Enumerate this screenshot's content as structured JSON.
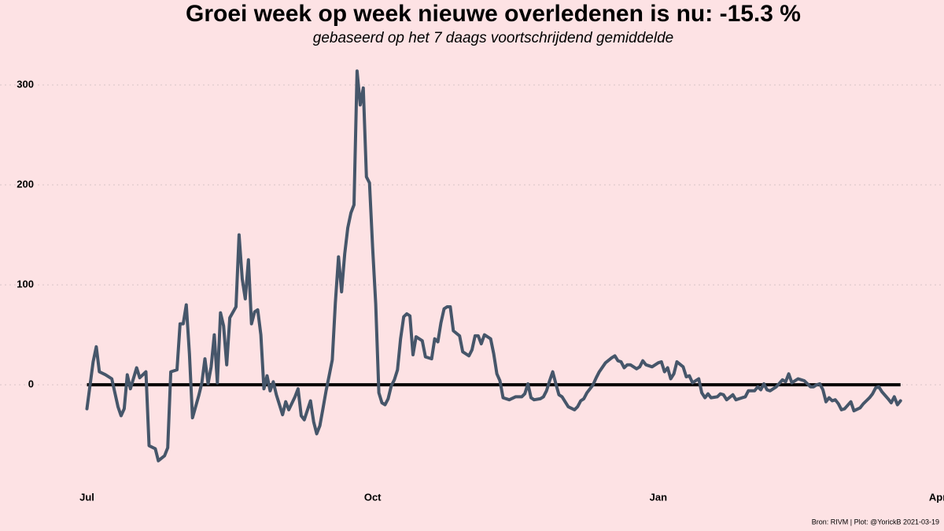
{
  "chart_data": {
    "type": "line",
    "title": "Groei week op week nieuwe overledenen is nu:  -15.3 %",
    "subtitle": "gebaseerd op het 7 daags voortschrijdend gemiddelde",
    "caption": "Bron: RIVM | Plot: @YorickB  2021-03-19",
    "xlim": [
      -28,
      276
    ],
    "xticks": [
      {
        "value": 0,
        "label": "Jul"
      },
      {
        "value": 92,
        "label": "Oct"
      },
      {
        "value": 184,
        "label": "Jan"
      },
      {
        "value": 274,
        "label": "Apr"
      }
    ],
    "ylim": [
      -103,
      322
    ],
    "yticks": [
      0,
      100,
      200,
      300
    ],
    "grid": true,
    "reference_line": 0,
    "series": [
      {
        "color": "#46566a",
        "x": [
          0,
          2,
          3,
          4,
          6,
          8,
          10,
          11,
          12,
          13,
          14,
          16,
          17,
          19,
          20,
          22,
          23,
          25,
          26,
          27,
          29,
          30,
          31,
          32,
          33,
          34,
          36,
          37,
          38,
          39,
          40,
          41,
          42,
          43,
          44,
          45,
          46,
          48,
          49,
          50,
          51,
          52,
          53,
          54,
          55,
          56,
          57,
          58,
          59,
          60,
          61,
          63,
          64,
          65,
          67,
          68,
          69,
          70,
          72,
          73,
          74,
          75,
          76,
          77,
          78,
          79,
          80,
          81,
          82,
          83,
          84,
          85,
          86,
          87,
          88,
          89,
          90,
          91,
          92,
          93,
          94,
          95,
          96,
          97,
          98,
          99,
          100,
          101,
          102,
          103,
          104,
          105,
          106,
          108,
          109,
          111,
          112,
          113,
          114,
          115,
          116,
          117,
          118,
          120,
          121,
          123,
          124,
          125,
          126,
          127,
          128,
          130,
          131,
          132,
          133,
          134,
          136,
          138,
          140,
          141,
          142,
          143,
          144,
          146,
          147,
          148,
          149,
          150,
          151,
          152,
          153,
          154,
          155,
          157,
          158,
          159,
          160,
          161,
          163,
          164,
          165,
          167,
          169,
          170,
          171,
          172,
          173,
          174,
          175,
          177,
          178,
          179,
          180,
          182,
          184,
          185,
          186,
          187,
          188,
          189,
          190,
          192,
          193,
          194,
          195,
          197,
          198,
          199,
          200,
          201,
          203,
          204,
          205,
          206,
          208,
          209,
          211,
          212,
          213,
          215,
          216,
          217,
          218,
          219,
          220,
          222,
          224,
          225,
          226,
          227,
          229,
          231,
          233,
          234,
          235,
          236,
          237,
          238,
          239,
          240,
          241,
          242,
          243,
          244,
          246,
          247,
          249,
          250,
          251,
          252,
          253,
          254,
          255,
          256,
          258,
          259,
          260,
          261,
          262
        ],
        "values": [
          -24,
          23,
          38,
          13,
          10,
          6,
          -22,
          -31,
          -24,
          10,
          -4,
          17,
          7,
          13,
          -61,
          -64,
          -76,
          -71,
          -63,
          13,
          15,
          61,
          61,
          80,
          31,
          -33,
          -11,
          2,
          26,
          1,
          18,
          50,
          2,
          72,
          59,
          20,
          67,
          78,
          150,
          106,
          86,
          125,
          61,
          73,
          75,
          50,
          -4,
          9,
          -6,
          3,
          -10,
          -30,
          -17,
          -25,
          -12,
          -4,
          -31,
          -35,
          -16,
          -37,
          -49,
          -41,
          -24,
          -6,
          9,
          25,
          82,
          128,
          93,
          131,
          157,
          172,
          180,
          314,
          280,
          297,
          208,
          202,
          137,
          81,
          -8,
          -18,
          -20,
          -14,
          -1,
          5,
          15,
          46,
          68,
          71,
          69,
          30,
          48,
          44,
          28,
          26,
          46,
          43,
          62,
          76,
          78,
          78,
          54,
          49,
          33,
          29,
          35,
          49,
          49,
          41,
          50,
          46,
          31,
          11,
          4,
          -13,
          -15,
          -12,
          -12,
          -9,
          1,
          -13,
          -15,
          -14,
          -12,
          -6,
          4,
          13,
          1,
          -10,
          -12,
          -17,
          -22,
          -25,
          -22,
          -16,
          -14,
          -8,
          0,
          7,
          13,
          22,
          27,
          29,
          24,
          23,
          17,
          20,
          20,
          16,
          18,
          24,
          20,
          18,
          22,
          23,
          13,
          17,
          6,
          11,
          23,
          18,
          8,
          9,
          2,
          6,
          -8,
          -13,
          -9,
          -13,
          -12,
          -9,
          -10,
          -15,
          -10,
          -15,
          -13,
          -12,
          -6,
          -6,
          -2,
          -5,
          1,
          -5,
          -6,
          -2,
          5,
          3,
          11,
          2,
          6,
          4,
          -2,
          -2,
          0,
          1,
          -5,
          -17,
          -13,
          -16,
          -15,
          -19,
          -25,
          -24,
          -17,
          -26,
          -23,
          -19,
          -16,
          -13,
          -9,
          -3,
          -2,
          -7,
          -14,
          -18,
          -12,
          -20,
          -16
        ]
      }
    ]
  }
}
